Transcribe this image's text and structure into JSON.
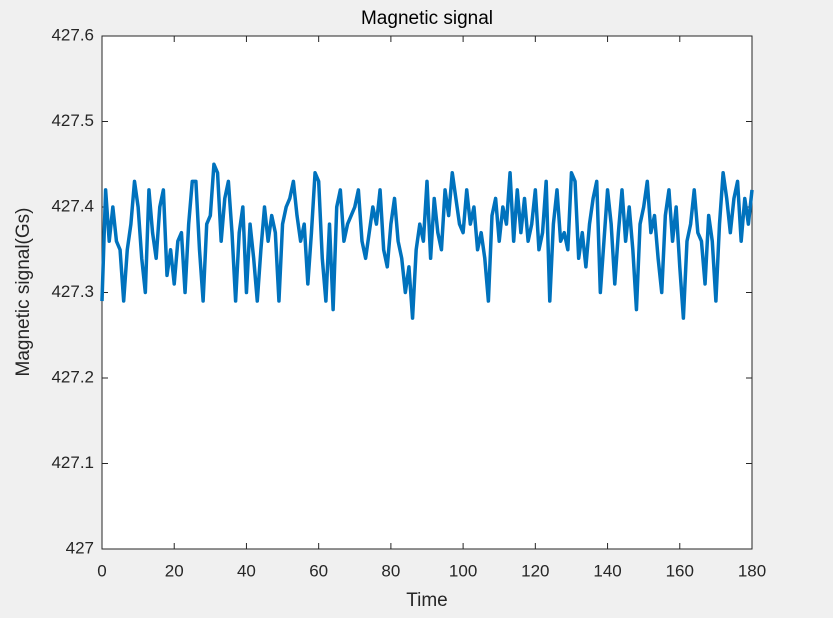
{
  "chart_data": {
    "type": "line",
    "title": "Magnetic signal",
    "xlabel": "Time",
    "ylabel": "Magnetic signal(Gs)",
    "x": [
      0,
      1,
      2,
      3,
      4,
      5,
      6,
      7,
      8,
      9,
      10,
      11,
      12,
      13,
      14,
      15,
      16,
      17,
      18,
      19,
      20,
      21,
      22,
      23,
      24,
      25,
      26,
      27,
      28,
      29,
      30,
      31,
      32,
      33,
      34,
      35,
      36,
      37,
      38,
      39,
      40,
      41,
      42,
      43,
      44,
      45,
      46,
      47,
      48,
      49,
      50,
      51,
      52,
      53,
      54,
      55,
      56,
      57,
      58,
      59,
      60,
      61,
      62,
      63,
      64,
      65,
      66,
      67,
      68,
      69,
      70,
      71,
      72,
      73,
      74,
      75,
      76,
      77,
      78,
      79,
      80,
      81,
      82,
      83,
      84,
      85,
      86,
      87,
      88,
      89,
      90,
      91,
      92,
      93,
      94,
      95,
      96,
      97,
      98,
      99,
      100,
      101,
      102,
      103,
      104,
      105,
      106,
      107,
      108,
      109,
      110,
      111,
      112,
      113,
      114,
      115,
      116,
      117,
      118,
      119,
      120,
      121,
      122,
      123,
      124,
      125,
      126,
      127,
      128,
      129,
      130,
      131,
      132,
      133,
      134,
      135,
      136,
      137,
      138,
      139,
      140,
      141,
      142,
      143,
      144,
      145,
      146,
      147,
      148,
      149,
      150,
      151,
      152,
      153,
      154,
      155,
      156,
      157,
      158,
      159,
      160,
      161,
      162,
      163,
      164,
      165,
      166,
      167,
      168,
      169,
      170,
      171,
      172,
      173,
      174,
      175,
      176,
      177,
      178,
      179,
      180
    ],
    "series": [
      {
        "name": "Magnetic signal",
        "color": "#0072bd",
        "values": [
          427.29,
          427.42,
          427.36,
          427.4,
          427.36,
          427.35,
          427.29,
          427.35,
          427.38,
          427.43,
          427.4,
          427.34,
          427.3,
          427.42,
          427.37,
          427.34,
          427.4,
          427.42,
          427.32,
          427.35,
          427.31,
          427.36,
          427.37,
          427.3,
          427.38,
          427.43,
          427.43,
          427.35,
          427.29,
          427.38,
          427.39,
          427.45,
          427.44,
          427.36,
          427.41,
          427.43,
          427.37,
          427.29,
          427.37,
          427.4,
          427.3,
          427.38,
          427.34,
          427.29,
          427.35,
          427.4,
          427.36,
          427.39,
          427.37,
          427.29,
          427.38,
          427.4,
          427.41,
          427.43,
          427.39,
          427.36,
          427.38,
          427.31,
          427.37,
          427.44,
          427.43,
          427.34,
          427.29,
          427.38,
          427.28,
          427.4,
          427.42,
          427.36,
          427.38,
          427.39,
          427.4,
          427.42,
          427.36,
          427.34,
          427.37,
          427.4,
          427.38,
          427.42,
          427.35,
          427.33,
          427.38,
          427.41,
          427.36,
          427.34,
          427.3,
          427.33,
          427.27,
          427.35,
          427.38,
          427.36,
          427.43,
          427.34,
          427.41,
          427.37,
          427.35,
          427.42,
          427.39,
          427.44,
          427.41,
          427.38,
          427.37,
          427.42,
          427.38,
          427.4,
          427.35,
          427.37,
          427.34,
          427.29,
          427.39,
          427.41,
          427.36,
          427.4,
          427.38,
          427.44,
          427.36,
          427.42,
          427.37,
          427.41,
          427.36,
          427.38,
          427.42,
          427.35,
          427.37,
          427.43,
          427.29,
          427.38,
          427.42,
          427.36,
          427.37,
          427.35,
          427.44,
          427.43,
          427.34,
          427.37,
          427.33,
          427.38,
          427.41,
          427.43,
          427.3,
          427.36,
          427.42,
          427.38,
          427.31,
          427.37,
          427.42,
          427.36,
          427.4,
          427.35,
          427.28,
          427.38,
          427.4,
          427.43,
          427.37,
          427.39,
          427.34,
          427.3,
          427.39,
          427.42,
          427.36,
          427.4,
          427.33,
          427.27,
          427.36,
          427.38,
          427.42,
          427.37,
          427.36,
          427.31,
          427.39,
          427.36,
          427.29,
          427.38,
          427.44,
          427.41,
          427.37,
          427.41,
          427.43,
          427.36,
          427.41,
          427.38,
          427.42
        ]
      }
    ],
    "xlim": [
      0,
      180
    ],
    "xticks": [
      0,
      20,
      40,
      60,
      80,
      100,
      120,
      140,
      160,
      180
    ],
    "ylim": [
      427,
      427.6
    ],
    "yticks": [
      427,
      427.1,
      427.2,
      427.3,
      427.4,
      427.5,
      427.6
    ]
  }
}
